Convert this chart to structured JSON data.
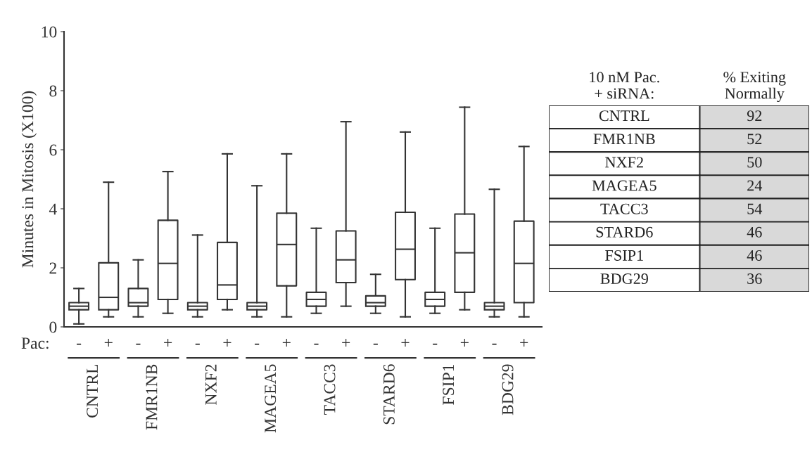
{
  "chart_data": [
    {
      "type": "box",
      "ylabel": "Minutes in Mitosis (X100)",
      "ylim": [
        0,
        10
      ],
      "yticks": [
        0,
        2,
        4,
        6,
        8,
        10
      ],
      "grid": false,
      "legend": false,
      "categories": [
        "-",
        "+",
        "-",
        "+",
        "-",
        "+",
        "-",
        "+",
        "-",
        "+",
        "-",
        "+",
        "-",
        "+",
        "-",
        "+"
      ],
      "annotations": [
        "Pac:",
        "CNTRL",
        "FMR1NB",
        "NXF2",
        "MAGEA5",
        "TACC3",
        "STARD6",
        "FSIP1",
        "BDG29"
      ],
      "series": [
        {
          "color": "#333333",
          "boxes": [
            {
              "low": 0.1,
              "q1": 0.58,
              "median": 0.7,
              "q3": 0.82,
              "high": 1.3
            },
            {
              "low": 0.34,
              "q1": 0.58,
              "median": 1.0,
              "q3": 2.17,
              "high": 4.9
            },
            {
              "low": 0.34,
              "q1": 0.7,
              "median": 0.82,
              "q3": 1.3,
              "high": 2.27
            },
            {
              "low": 0.46,
              "q1": 0.93,
              "median": 2.15,
              "q3": 3.61,
              "high": 5.26
            },
            {
              "low": 0.34,
              "q1": 0.58,
              "median": 0.7,
              "q3": 0.82,
              "high": 3.11
            },
            {
              "low": 0.58,
              "q1": 0.93,
              "median": 1.42,
              "q3": 2.86,
              "high": 5.86
            },
            {
              "low": 0.34,
              "q1": 0.58,
              "median": 0.7,
              "q3": 0.82,
              "high": 4.78
            },
            {
              "low": 0.34,
              "q1": 1.39,
              "median": 2.79,
              "q3": 3.85,
              "high": 5.86
            },
            {
              "low": 0.46,
              "q1": 0.7,
              "median": 0.93,
              "q3": 1.17,
              "high": 3.34
            },
            {
              "low": 0.7,
              "q1": 1.5,
              "median": 2.27,
              "q3": 3.25,
              "high": 6.95
            },
            {
              "low": 0.46,
              "q1": 0.7,
              "median": 0.82,
              "q3": 1.05,
              "high": 1.78
            },
            {
              "low": 0.34,
              "q1": 1.6,
              "median": 2.63,
              "q3": 3.88,
              "high": 6.6
            },
            {
              "low": 0.46,
              "q1": 0.7,
              "median": 0.93,
              "q3": 1.17,
              "high": 3.34
            },
            {
              "low": 0.58,
              "q1": 1.17,
              "median": 2.51,
              "q3": 3.82,
              "high": 7.44
            },
            {
              "low": 0.34,
              "q1": 0.58,
              "median": 0.7,
              "q3": 0.82,
              "high": 4.66
            },
            {
              "low": 0.34,
              "q1": 0.82,
              "median": 2.15,
              "q3": 3.58,
              "high": 6.11
            }
          ]
        }
      ]
    },
    {
      "type": "other",
      "annotations": [
        "10 nM Pac.\n+ siRNA:",
        "% Exiting\nNormally"
      ],
      "categories": [
        "CNTRL",
        "FMR1NB",
        "NXF2",
        "MAGEA5",
        "TACC3",
        "STARD6",
        "FSIP1",
        "BDG29"
      ],
      "values": [
        92,
        52,
        50,
        24,
        54,
        46,
        46,
        36
      ],
      "color": "#d9d9d9",
      "data_labels": true
    }
  ]
}
